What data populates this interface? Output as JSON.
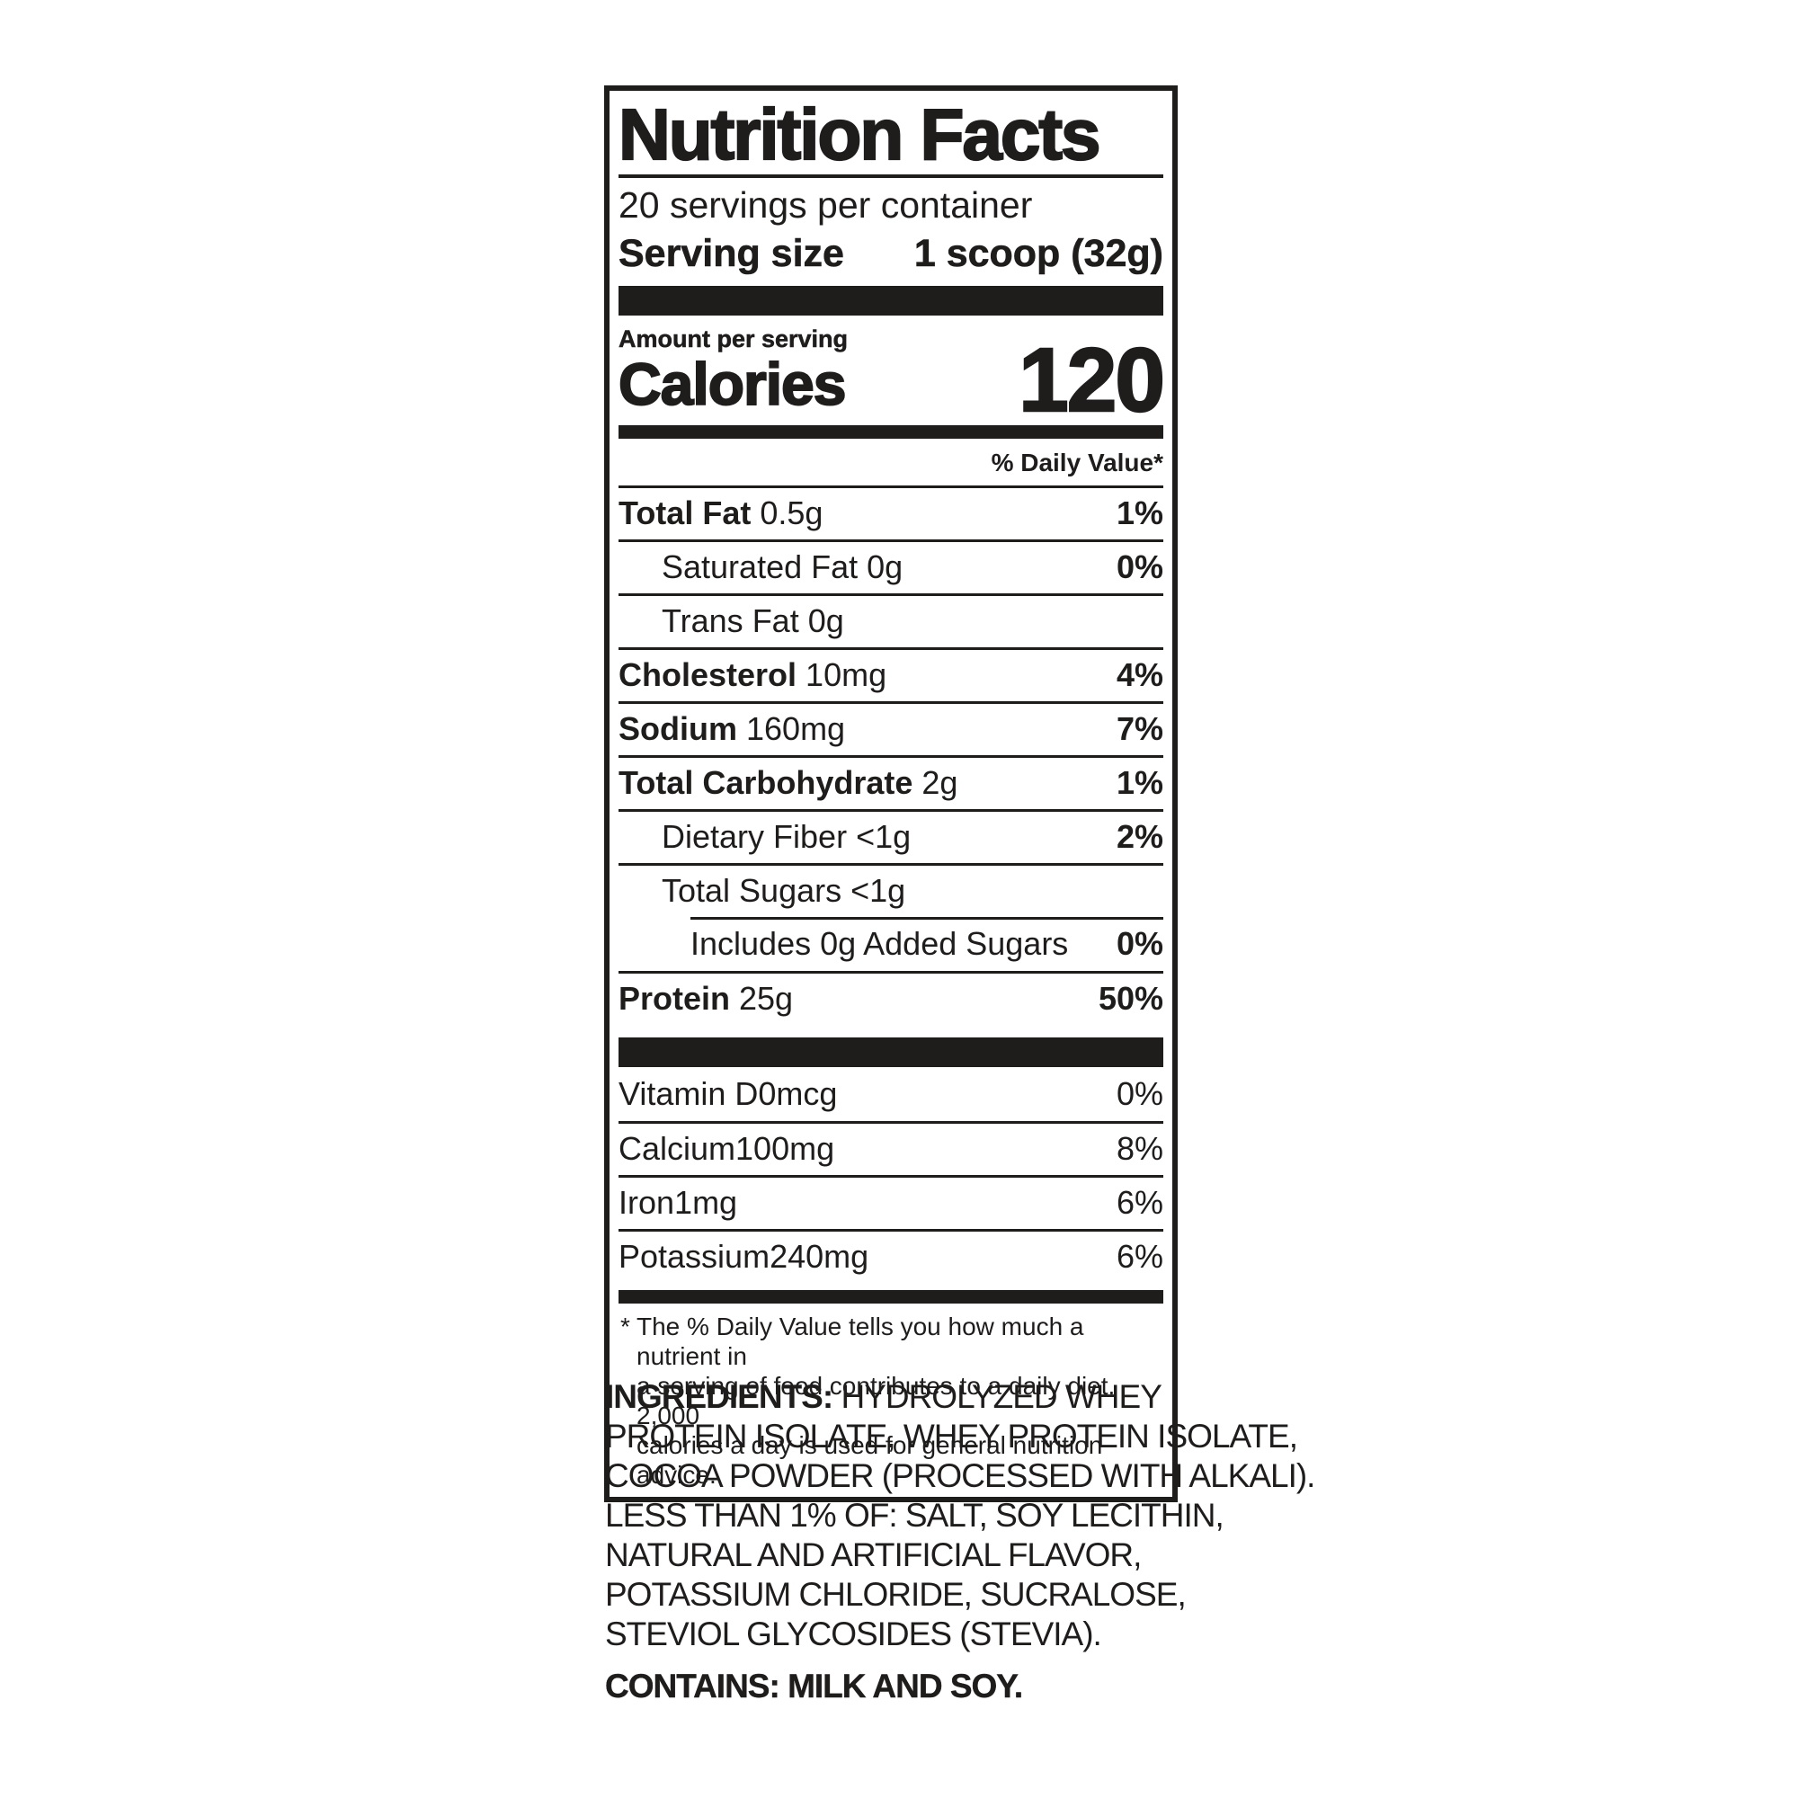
{
  "colors": {
    "ink": "#1f1c1c",
    "background": "#ffffff"
  },
  "nutrition_label": {
    "title": "Nutrition Facts",
    "servings_per_container": "20 servings per container",
    "serving_size": {
      "label": "Serving size",
      "value": "1 scoop (32g)"
    },
    "amount_per_serving": "Amount per serving",
    "calories": {
      "label": "Calories",
      "value": "120"
    },
    "daily_value_header": "% Daily Value*",
    "nutrient_rows": [
      {
        "name": "Total Fat",
        "amount": "0.5g",
        "dv": "1%"
      },
      {
        "name": "Saturated Fat",
        "amount": "0g",
        "dv": "0%"
      },
      {
        "name": "Trans Fat",
        "amount": "0g",
        "dv": ""
      },
      {
        "name": "Cholesterol",
        "amount": "10mg",
        "dv": "4%"
      },
      {
        "name": "Sodium",
        "amount": "160mg",
        "dv": "7%"
      },
      {
        "name": "Total Carbohydrate",
        "amount": "2g",
        "dv": "1%"
      },
      {
        "name": "Dietary Fiber",
        "amount": "<1g",
        "dv": "2%"
      },
      {
        "name": "Total Sugars",
        "amount": "<1g",
        "dv": ""
      },
      {
        "name": "Includes 0g Added Sugars",
        "amount": "",
        "dv": "0%"
      },
      {
        "name": "Protein",
        "amount": "25g",
        "dv": "50%"
      }
    ],
    "micronutrient_rows": [
      {
        "name": "Vitamin D",
        "amount": "0mcg",
        "dv": "0%"
      },
      {
        "name": "Calcium",
        "amount": "100mg",
        "dv": "8%"
      },
      {
        "name": "Iron",
        "amount": "1mg",
        "dv": "6%"
      },
      {
        "name": "Potassium",
        "amount": "240mg",
        "dv": "6%"
      }
    ],
    "footnote": {
      "asterisk": "*",
      "lines": [
        "The % Daily Value tells you how much a nutrient in",
        "a serving of food contributes to a daily diet. 2,000",
        "calories a day is used for general nutrition advice."
      ]
    }
  },
  "ingredients_section": {
    "heading": "INGREDIENTS:",
    "line1_rest": "HYDROLYZED WHEY",
    "lines": [
      "PROTEIN ISOLATE, WHEY PROTEIN ISOLATE,",
      "COCOA POWDER (PROCESSED WITH ALKALI).",
      "LESS THAN 1% OF: SALT, SOY LECITHIN,",
      "NATURAL AND ARTIFICIAL FLAVOR,",
      "POTASSIUM CHLORIDE, SUCRALOSE,",
      "STEVIOL GLYCOSIDES (STEVIA)."
    ],
    "contains": "CONTAINS: MILK AND SOY."
  }
}
